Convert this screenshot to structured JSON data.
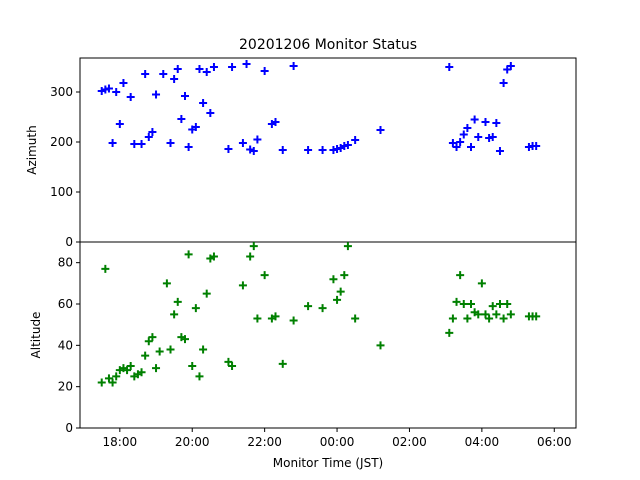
{
  "chart_data": [
    {
      "type": "scatter",
      "title": "20201206 Monitor Status",
      "xlabel": "",
      "ylabel": "Azimuth",
      "x_unit": "hours JST (values >= 24 are after midnight on the next day)",
      "xlim": [
        16.9,
        30.6
      ],
      "ylim": [
        0,
        368
      ],
      "xticks": [
        18,
        20,
        22,
        24,
        26,
        28,
        30
      ],
      "yticks": [
        0,
        100,
        200,
        300
      ],
      "ytick_labels": [
        "0",
        "100",
        "200",
        "300"
      ],
      "marker": "plus",
      "color": "#0000ff",
      "x": [
        17.5,
        17.6,
        17.7,
        17.8,
        17.9,
        18.0,
        18.1,
        18.3,
        18.4,
        18.6,
        18.7,
        18.8,
        18.9,
        19.0,
        19.2,
        19.4,
        19.5,
        19.6,
        19.7,
        19.8,
        19.9,
        20.0,
        20.1,
        20.2,
        20.3,
        20.4,
        20.5,
        20.6,
        21.0,
        21.1,
        21.4,
        21.5,
        21.6,
        21.7,
        21.8,
        22.0,
        22.2,
        22.3,
        22.5,
        22.8,
        23.2,
        23.6,
        23.9,
        24.0,
        24.1,
        24.2,
        24.3,
        24.5,
        25.2,
        27.1,
        27.2,
        27.3,
        27.4,
        27.5,
        27.6,
        27.7,
        27.8,
        27.9,
        28.1,
        28.2,
        28.3,
        28.4,
        28.5,
        28.6,
        28.7,
        28.8,
        29.3,
        29.4,
        29.5
      ],
      "y": [
        302,
        305,
        307,
        198,
        300,
        236,
        318,
        290,
        196,
        196,
        336,
        210,
        220,
        295,
        336,
        198,
        326,
        346,
        246,
        292,
        190,
        225,
        230,
        346,
        278,
        340,
        258,
        350,
        186,
        350,
        198,
        356,
        185,
        182,
        205,
        342,
        236,
        240,
        184,
        352,
        184,
        184,
        184,
        186,
        188,
        192,
        194,
        204,
        224,
        350,
        198,
        190,
        200,
        215,
        228,
        190,
        245,
        210,
        240,
        208,
        210,
        238,
        182,
        318,
        345,
        352,
        190,
        192,
        192
      ]
    },
    {
      "type": "scatter",
      "title": "",
      "xlabel": "Monitor Time (JST)",
      "ylabel": "Altitude",
      "x_unit": "hours JST (values >= 24 are after midnight on the next day)",
      "xlim": [
        16.9,
        30.6
      ],
      "ylim": [
        0,
        90
      ],
      "xticks": [
        18,
        20,
        22,
        24,
        26,
        28,
        30
      ],
      "xtick_labels": [
        "18:00",
        "20:00",
        "22:00",
        "00:00",
        "02:00",
        "04:00",
        "06:00"
      ],
      "yticks": [
        0,
        20,
        40,
        60,
        80
      ],
      "ytick_labels": [
        "0",
        "20",
        "40",
        "60",
        "80"
      ],
      "marker": "plus",
      "color": "#008000",
      "x": [
        17.5,
        17.6,
        17.7,
        17.8,
        17.9,
        18.0,
        18.1,
        18.2,
        18.3,
        18.4,
        18.5,
        18.6,
        18.7,
        18.8,
        18.9,
        19.0,
        19.1,
        19.3,
        19.4,
        19.5,
        19.6,
        19.7,
        19.8,
        19.9,
        20.0,
        20.1,
        20.2,
        20.3,
        20.4,
        20.5,
        20.6,
        21.0,
        21.1,
        21.4,
        21.6,
        21.7,
        21.8,
        22.0,
        22.2,
        22.3,
        22.5,
        22.8,
        23.2,
        23.6,
        23.9,
        24.0,
        24.1,
        24.2,
        24.3,
        24.5,
        25.2,
        27.1,
        27.2,
        27.3,
        27.4,
        27.5,
        27.6,
        27.7,
        27.8,
        27.9,
        28.0,
        28.1,
        28.2,
        28.3,
        28.4,
        28.5,
        28.6,
        28.7,
        28.8,
        29.3,
        29.4,
        29.5
      ],
      "y": [
        22,
        77,
        24,
        22,
        25,
        28,
        29,
        28,
        30,
        25,
        26,
        27,
        35,
        42,
        44,
        29,
        37,
        70,
        38,
        55,
        61,
        44,
        43,
        84,
        30,
        58,
        25,
        38,
        65,
        82,
        83,
        32,
        30,
        69,
        83,
        88,
        53,
        74,
        53,
        54,
        31,
        52,
        59,
        58,
        72,
        62,
        66,
        74,
        88,
        53,
        40,
        46,
        53,
        61,
        74,
        60,
        53,
        60,
        56,
        55,
        70,
        55,
        53,
        59,
        55,
        60,
        53,
        60,
        55,
        54,
        54,
        54
      ]
    }
  ]
}
